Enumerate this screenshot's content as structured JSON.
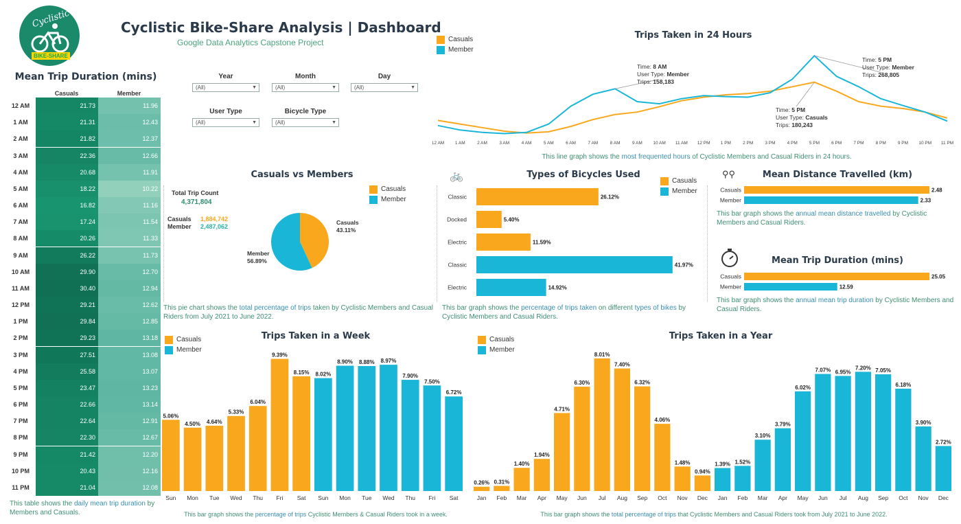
{
  "header": {
    "logo_text_top": "Cyclistic",
    "logo_text_bottom": "BIKE-SHARE",
    "title": "Cyclistic Bike-Share Analysis | Dashboard",
    "subtitle": "Google Data Analytics Capstone Project"
  },
  "colors": {
    "casual": "#f9a81d",
    "member": "#1ab6d8",
    "teal_dark": "#1a8a6b",
    "teal_light": "#8ccdb8",
    "caption": "#3f8f71"
  },
  "filters": [
    {
      "label": "Year",
      "value": "(All)"
    },
    {
      "label": "Month",
      "value": "(All)"
    },
    {
      "label": "Day",
      "value": "(All)"
    },
    {
      "label": "User Type",
      "value": "(All)"
    },
    {
      "label": "Bicycle Type",
      "value": "(All)"
    }
  ],
  "hourly_table": {
    "title": "Mean Trip Duration (mins)",
    "col_casual": "Casuals",
    "col_member": "Member",
    "rows": [
      {
        "hour": "12 AM",
        "casual": "21.73",
        "member": "11.96"
      },
      {
        "hour": "1 AM",
        "casual": "21.31",
        "member": "12.43"
      },
      {
        "hour": "2 AM",
        "casual": "21.82",
        "member": "12.37"
      },
      {
        "hour": "3 AM",
        "casual": "22.36",
        "member": "12.66"
      },
      {
        "hour": "4 AM",
        "casual": "20.68",
        "member": "11.91"
      },
      {
        "hour": "5 AM",
        "casual": "18.22",
        "member": "10.22"
      },
      {
        "hour": "6 AM",
        "casual": "16.82",
        "member": "11.16"
      },
      {
        "hour": "7 AM",
        "casual": "17.24",
        "member": "11.54"
      },
      {
        "hour": "8 AM",
        "casual": "20.26",
        "member": "11.33"
      },
      {
        "hour": "9 AM",
        "casual": "26.22",
        "member": "11.73"
      },
      {
        "hour": "10 AM",
        "casual": "29.90",
        "member": "12.70"
      },
      {
        "hour": "11 AM",
        "casual": "30.40",
        "member": "12.94"
      },
      {
        "hour": "12 PM",
        "casual": "29.21",
        "member": "12.62"
      },
      {
        "hour": "1 PM",
        "casual": "29.84",
        "member": "12.85"
      },
      {
        "hour": "2 PM",
        "casual": "29.23",
        "member": "13.18"
      },
      {
        "hour": "3 PM",
        "casual": "27.51",
        "member": "13.08"
      },
      {
        "hour": "4 PM",
        "casual": "25.58",
        "member": "13.07"
      },
      {
        "hour": "5 PM",
        "casual": "23.47",
        "member": "13.23"
      },
      {
        "hour": "6 PM",
        "casual": "22.66",
        "member": "13.14"
      },
      {
        "hour": "7 PM",
        "casual": "22.64",
        "member": "12.91"
      },
      {
        "hour": "8 PM",
        "casual": "22.30",
        "member": "12.67"
      },
      {
        "hour": "9 PM",
        "casual": "21.42",
        "member": "12.20"
      },
      {
        "hour": "10 PM",
        "casual": "20.43",
        "member": "12.16"
      },
      {
        "hour": "11 PM",
        "casual": "21.04",
        "member": "12.08"
      }
    ],
    "caption_parts": [
      "This table shows the ",
      "daily mean trip duration",
      " by Members and Casuals."
    ]
  },
  "legend": {
    "casual": "Casuals",
    "member": "Member"
  },
  "chart_data": [
    {
      "id": "trips24",
      "type": "line",
      "title": "Trips Taken in 24 Hours",
      "x": [
        "12 AM",
        "1 AM",
        "2 AM",
        "3 AM",
        "4 AM",
        "5 AM",
        "6 AM",
        "7 AM",
        "8 AM",
        "9 AM",
        "10 AM",
        "11 AM",
        "12 PM",
        "1 PM",
        "2 PM",
        "3 PM",
        "4 PM",
        "5 PM",
        "6 PM",
        "7 PM",
        "8 PM",
        "9 PM",
        "10 PM",
        "11 PM"
      ],
      "series": [
        {
          "name": "Casuals",
          "values": [
            52000,
            40000,
            28000,
            16000,
            10000,
            14000,
            32000,
            55000,
            72000,
            80000,
            98000,
            118000,
            130000,
            138000,
            142000,
            150000,
            165000,
            180243,
            150000,
            115000,
            100000,
            92000,
            80000,
            60000
          ]
        },
        {
          "name": "Member",
          "values": [
            35000,
            20000,
            12000,
            8000,
            12000,
            40000,
            100000,
            140000,
            158183,
            115000,
            108000,
            125000,
            135000,
            132000,
            130000,
            145000,
            190000,
            268805,
            200000,
            165000,
            125000,
            102000,
            80000,
            50000
          ]
        }
      ],
      "ylim": [
        0,
        290000
      ],
      "annotations": [
        {
          "lines": [
            "Time: 8 AM",
            "User Type: Member",
            "Trips: 158,183"
          ]
        },
        {
          "lines": [
            "Time: 5 PM",
            "User Type: Member",
            "Trips: 268,805"
          ]
        },
        {
          "lines": [
            "Time: 5 PM",
            "User Type: Casuals",
            "Trips: 180,243"
          ]
        }
      ],
      "caption_parts": [
        "This line graph shows the ",
        "most frequented hours",
        " of Cyclistic Members and Casual Riders in 24 hours."
      ]
    },
    {
      "id": "pie",
      "type": "pie",
      "title": "Casuals vs Members",
      "total_label": "Total Trip Count",
      "total_value": "4,371,804",
      "counts": [
        {
          "name": "Casuals",
          "value": "1,884,742"
        },
        {
          "name": "Member",
          "value": "2,487,062"
        }
      ],
      "slices": [
        {
          "name": "Casuals",
          "pct": 43.11,
          "label": "Casuals",
          "pct_label": "43.11%"
        },
        {
          "name": "Member",
          "pct": 56.89,
          "label": "Member",
          "pct_label": "56.89%"
        }
      ],
      "caption_parts": [
        "This pie chart shows the ",
        "total percentage of trips",
        " taken by Cyclistic Members and Casual Riders from July 2021 to June 2022."
      ]
    },
    {
      "id": "bikes",
      "type": "bar",
      "title": "Types of Bicycles Used",
      "bars": [
        {
          "label": "Classic",
          "value": 26.12,
          "text": "26.12%",
          "series": "Casuals"
        },
        {
          "label": "Docked",
          "value": 5.4,
          "text": "5.40%",
          "series": "Casuals"
        },
        {
          "label": "Electric",
          "value": 11.59,
          "text": "11.59%",
          "series": "Casuals"
        },
        {
          "label": "Classic",
          "value": 41.97,
          "text": "41.97%",
          "series": "Member"
        },
        {
          "label": "Electric",
          "value": 14.92,
          "text": "14.92%",
          "series": "Member"
        }
      ],
      "xlim": [
        0,
        42
      ],
      "caption_parts": [
        "This bar graph shows the ",
        "percentage of trips taken",
        " on different ",
        "types of bikes",
        " by Cyclistic Members and Casual Riders."
      ]
    },
    {
      "id": "distance",
      "type": "bar",
      "title": "Mean Distance Travelled (km)",
      "bars": [
        {
          "label": "Casuals",
          "value": 2.48,
          "text": "2.48",
          "series": "Casuals"
        },
        {
          "label": "Member",
          "value": 2.33,
          "text": "2.33",
          "series": "Member"
        }
      ],
      "xlim": [
        0,
        2.48
      ],
      "caption_parts": [
        "This bar graph shows the ",
        "annual mean distance travelled",
        " by Cyclistic Members and Casual Riders."
      ]
    },
    {
      "id": "duration",
      "type": "bar",
      "title": "Mean Trip Duration (mins)",
      "bars": [
        {
          "label": "Casuals",
          "value": 25.05,
          "text": "25.05",
          "series": "Casuals"
        },
        {
          "label": "Member",
          "value": 12.59,
          "text": "12.59",
          "series": "Member"
        }
      ],
      "xlim": [
        0,
        25.05
      ],
      "caption_parts": [
        "This bar graph shows the ",
        "annual mean trip duration",
        " by Cyclistic Members and Casual Riders."
      ]
    },
    {
      "id": "week",
      "type": "bar",
      "title": "Trips Taken in a Week",
      "bars": [
        {
          "label": "Sun",
          "value": 5.06,
          "text": "5.06%",
          "series": "Casuals"
        },
        {
          "label": "Mon",
          "value": 4.5,
          "text": "4.50%",
          "series": "Casuals"
        },
        {
          "label": "Tue",
          "value": 4.64,
          "text": "4.64%",
          "series": "Casuals"
        },
        {
          "label": "Wed",
          "value": 5.33,
          "text": "5.33%",
          "series": "Casuals"
        },
        {
          "label": "Thu",
          "value": 6.04,
          "text": "6.04%",
          "series": "Casuals"
        },
        {
          "label": "Fri",
          "value": 9.39,
          "text": "9.39%",
          "series": "Casuals"
        },
        {
          "label": "Sat",
          "value": 8.15,
          "text": "8.15%",
          "series": "Casuals"
        },
        {
          "label": "Sun",
          "value": 8.02,
          "text": "8.02%",
          "series": "Member"
        },
        {
          "label": "Mon",
          "value": 8.9,
          "text": "8.90%",
          "series": "Member"
        },
        {
          "label": "Tue",
          "value": 8.88,
          "text": "8.88%",
          "series": "Member"
        },
        {
          "label": "Wed",
          "value": 8.97,
          "text": "8.97%",
          "series": "Member"
        },
        {
          "label": "Thu",
          "value": 7.9,
          "text": "7.90%",
          "series": "Member"
        },
        {
          "label": "Fri",
          "value": 7.5,
          "text": "7.50%",
          "series": "Member"
        },
        {
          "label": "Sat",
          "value": 6.72,
          "text": "6.72%",
          "series": "Member"
        }
      ],
      "ylim": [
        0,
        10
      ],
      "caption_parts": [
        "This bar graph shows the ",
        "percentage of trips",
        " Cyclistic Members & Casual Riders took in a week."
      ]
    },
    {
      "id": "year",
      "type": "bar",
      "title": "Trips Taken in a Year",
      "bars": [
        {
          "label": "Jan",
          "value": 0.26,
          "text": "0.26%",
          "series": "Casuals"
        },
        {
          "label": "Feb",
          "value": 0.31,
          "text": "0.31%",
          "series": "Casuals"
        },
        {
          "label": "Mar",
          "value": 1.4,
          "text": "1.40%",
          "series": "Casuals"
        },
        {
          "label": "Apr",
          "value": 1.94,
          "text": "1.94%",
          "series": "Casuals"
        },
        {
          "label": "May",
          "value": 4.71,
          "text": "4.71%",
          "series": "Casuals"
        },
        {
          "label": "Jun",
          "value": 6.3,
          "text": "6.30%",
          "series": "Casuals"
        },
        {
          "label": "Jul",
          "value": 8.01,
          "text": "8.01%",
          "series": "Casuals"
        },
        {
          "label": "Aug",
          "value": 7.4,
          "text": "7.40%",
          "series": "Casuals"
        },
        {
          "label": "Sep",
          "value": 6.32,
          "text": "6.32%",
          "series": "Casuals"
        },
        {
          "label": "Oct",
          "value": 4.06,
          "text": "4.06%",
          "series": "Casuals"
        },
        {
          "label": "Nov",
          "value": 1.48,
          "text": "1.48%",
          "series": "Casuals"
        },
        {
          "label": "Dec",
          "value": 0.94,
          "text": "0.94%",
          "series": "Casuals"
        },
        {
          "label": "Jan",
          "value": 1.39,
          "text": "1.39%",
          "series": "Member"
        },
        {
          "label": "Feb",
          "value": 1.52,
          "text": "1.52%",
          "series": "Member"
        },
        {
          "label": "Mar",
          "value": 3.1,
          "text": "3.10%",
          "series": "Member"
        },
        {
          "label": "Apr",
          "value": 3.79,
          "text": "3.79%",
          "series": "Member"
        },
        {
          "label": "May",
          "value": 6.02,
          "text": "6.02%",
          "series": "Member"
        },
        {
          "label": "Jun",
          "value": 7.07,
          "text": "7.07%",
          "series": "Member"
        },
        {
          "label": "Jul",
          "value": 6.95,
          "text": "6.95%",
          "series": "Member"
        },
        {
          "label": "Aug",
          "value": 7.2,
          "text": "7.20%",
          "series": "Member"
        },
        {
          "label": "Sep",
          "value": 7.05,
          "text": "7.05%",
          "series": "Member"
        },
        {
          "label": "Oct",
          "value": 6.18,
          "text": "6.18%",
          "series": "Member"
        },
        {
          "label": "Nov",
          "value": 3.9,
          "text": "3.90%",
          "series": "Member"
        },
        {
          "label": "Dec",
          "value": 2.72,
          "text": "2.72%",
          "series": "Member"
        }
      ],
      "ylim": [
        0,
        8.5
      ],
      "caption_parts": [
        "This bar graph shows the ",
        "total percentage of trips",
        " that Cyclistic Members and Casual Riders took from July 2021 to June 2022."
      ]
    }
  ]
}
